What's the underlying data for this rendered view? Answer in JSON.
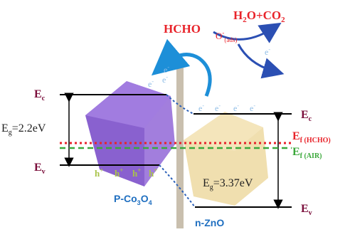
{
  "reaction": {
    "reactant": "HCHO",
    "oxygen_base": "O",
    "oxygen_sup": "-",
    "oxygen_sub": "(ads)",
    "product_h": "H",
    "product_sub1": "2",
    "product_mid": "O+CO",
    "product_sub2": "2",
    "electron": "e",
    "electron_sup": "-"
  },
  "left": {
    "ec_base": "E",
    "ec_sub": "c",
    "ev_base": "E",
    "ev_sub": "v",
    "eg_base": "E",
    "eg_sub": "g",
    "eg_value": "=2.2eV",
    "material_a": "P-Co",
    "material_sub1": "3",
    "material_b": "O",
    "material_sub2": "4",
    "hole": "h",
    "hole_sup": "+"
  },
  "right": {
    "ec_base": "E",
    "ec_sub": "c",
    "ev_base": "E",
    "ev_sub": "v",
    "ef_hcho_base": "E",
    "ef_hcho_sub": "f (HCHO)",
    "ef_air_base": "E",
    "ef_air_sub": "f (AIR)",
    "eg_base": "E",
    "eg_sub": "g",
    "eg_value": "=3.37eV",
    "material": "n-ZnO"
  },
  "colors": {
    "reactant_red": "#e8232a",
    "oxygen_blue": "#2b4fb3",
    "arrow_blue": "#1d8fd8",
    "electron_blue": "#8fbde6",
    "hole_green": "#a9c44a",
    "ef_red": "#e8232a",
    "ef_green": "#3aa83a",
    "left_label": "#7a0d3a",
    "right_label": "#7a0d3a",
    "material_left": "#1f6fc0",
    "material_right": "#1f6fc0",
    "co3o4_fill": "#8d62d6",
    "zno_fill": "#efdca8"
  },
  "icons": {
    "electron_flow": "curved-arrow-icon"
  }
}
